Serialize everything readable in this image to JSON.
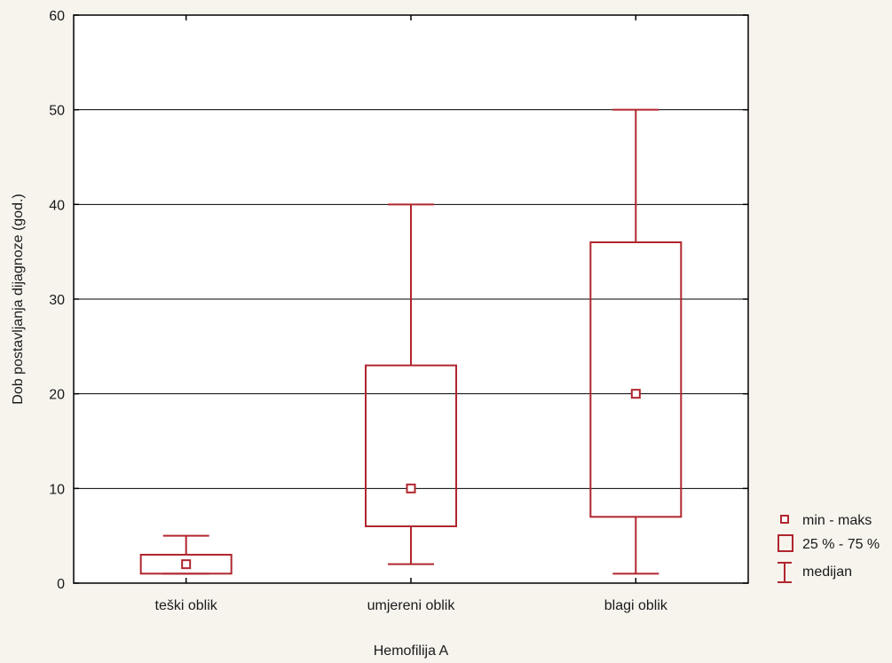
{
  "chart_data": {
    "type": "boxplot",
    "xlabel": "Hemofilija A",
    "ylabel": "Dob postavljanja dijagnoze (god.)",
    "ylim": [
      0,
      60
    ],
    "yticks": [
      0,
      10,
      20,
      30,
      40,
      50,
      60
    ],
    "grid": "horizontal",
    "legend_position": "bottom-right",
    "colors": {
      "box": "#b0262e",
      "grid": "#000000",
      "background": "#ffffff"
    },
    "categories": [
      "teški oblik",
      "umjereni oblik",
      "blagi oblik"
    ],
    "series": [
      {
        "category": "teški oblik",
        "min": 1,
        "q1": 1,
        "median": 2,
        "q3": 3,
        "max": 5
      },
      {
        "category": "umjereni oblik",
        "min": 2,
        "q1": 6,
        "median": 10,
        "q3": 23,
        "max": 40
      },
      {
        "category": "blagi oblik",
        "min": 1,
        "q1": 7,
        "median": 20,
        "q3": 36,
        "max": 50
      }
    ],
    "legend": [
      "min - maks",
      "25 % - 75 %",
      "medijan"
    ]
  }
}
